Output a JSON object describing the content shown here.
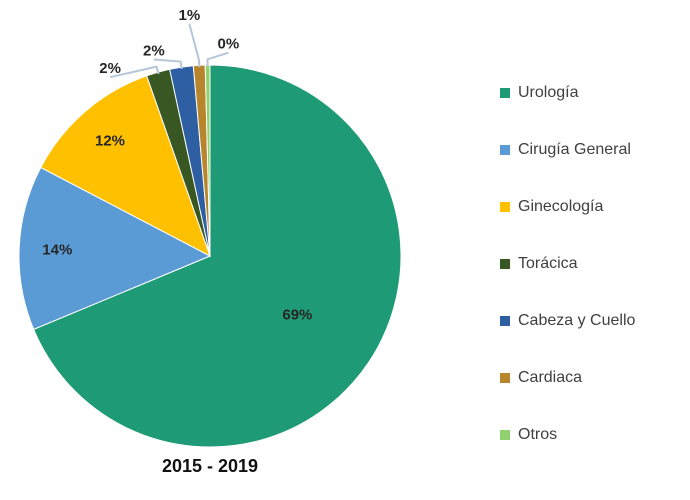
{
  "chart_data": {
    "type": "pie",
    "title": "2015 - 2019",
    "categories": [
      "Urología",
      "Cirugía General",
      "Ginecología",
      "Torácica",
      "Cabeza y Cuello",
      "Cardiaca",
      "Otros"
    ],
    "values": [
      69,
      14,
      12,
      2,
      2,
      1,
      0
    ],
    "labels": [
      "69%",
      "14%",
      "12%",
      "2%",
      "2%",
      "1%",
      "0%"
    ],
    "colors": [
      "#1e9a76",
      "#5b9bd5",
      "#ffc000",
      "#385723",
      "#2e5fa3",
      "#b7862c",
      "#8fd16e"
    ],
    "legend_position": "right"
  }
}
